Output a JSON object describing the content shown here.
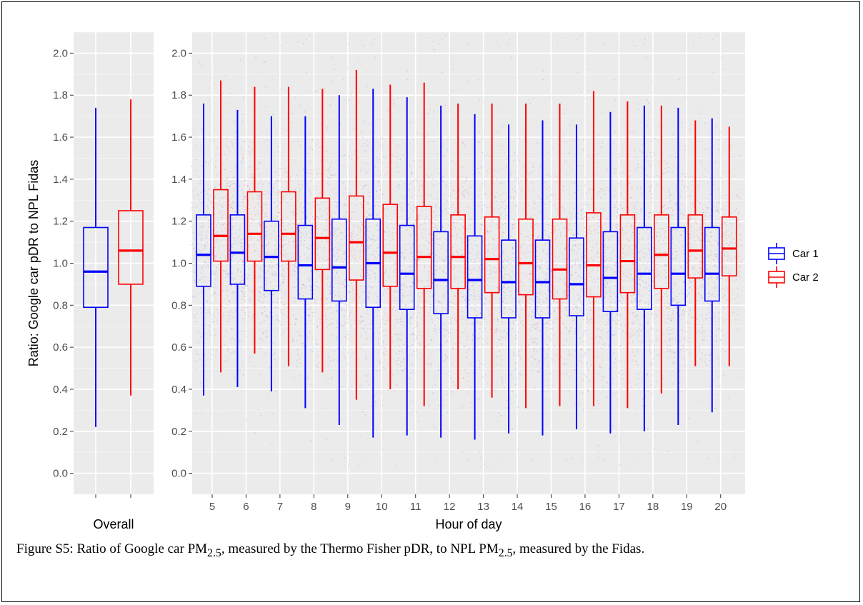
{
  "caption": {
    "label": "Figure S5:",
    "text_1": "Ratio of Google car PM",
    "sub_1": "2.5",
    "text_2": ", measured by the Thermo Fisher pDR, to NPL PM",
    "sub_2": "2.5",
    "text_3": ", measured by the Fidas."
  },
  "chart_data": {
    "type": "boxplot",
    "ylabel": "Ratio: Google car pDR to NPL Fidas",
    "ylim": [
      -0.1,
      2.1
    ],
    "yticks": [
      "0.0",
      "0.2",
      "0.4",
      "0.6",
      "0.8",
      "1.0",
      "1.2",
      "1.4",
      "1.6",
      "1.8",
      "2.0"
    ],
    "grid": true,
    "background": "#ebebeb",
    "legend": {
      "position": "right",
      "entries": [
        {
          "name": "Car 1",
          "color": "#0000ff"
        },
        {
          "name": "Car 2",
          "color": "#ff0000"
        }
      ]
    },
    "panels": [
      {
        "xlabel": "Overall",
        "categories": [
          ""
        ],
        "series": [
          {
            "name": "Car 1",
            "color": "#0000ff",
            "boxes": [
              {
                "min": 0.22,
                "q1": 0.79,
                "median": 0.96,
                "q3": 1.17,
                "max": 1.74
              }
            ]
          },
          {
            "name": "Car 2",
            "color": "#ff0000",
            "boxes": [
              {
                "min": 0.37,
                "q1": 0.9,
                "median": 1.06,
                "q3": 1.25,
                "max": 1.78
              }
            ]
          }
        ]
      },
      {
        "xlabel": "Hour of day",
        "categories": [
          "5",
          "6",
          "7",
          "8",
          "9",
          "10",
          "11",
          "12",
          "13",
          "14",
          "15",
          "16",
          "17",
          "18",
          "19",
          "20"
        ],
        "series": [
          {
            "name": "Car 1",
            "color": "#0000ff",
            "boxes": [
              {
                "min": 0.37,
                "q1": 0.89,
                "median": 1.04,
                "q3": 1.23,
                "max": 1.76
              },
              {
                "min": 0.41,
                "q1": 0.9,
                "median": 1.05,
                "q3": 1.23,
                "max": 1.73
              },
              {
                "min": 0.39,
                "q1": 0.87,
                "median": 1.03,
                "q3": 1.2,
                "max": 1.7
              },
              {
                "min": 0.31,
                "q1": 0.83,
                "median": 0.99,
                "q3": 1.18,
                "max": 1.7
              },
              {
                "min": 0.23,
                "q1": 0.82,
                "median": 0.98,
                "q3": 1.21,
                "max": 1.8
              },
              {
                "min": 0.17,
                "q1": 0.79,
                "median": 1.0,
                "q3": 1.21,
                "max": 1.83
              },
              {
                "min": 0.18,
                "q1": 0.78,
                "median": 0.95,
                "q3": 1.18,
                "max": 1.79
              },
              {
                "min": 0.17,
                "q1": 0.76,
                "median": 0.92,
                "q3": 1.15,
                "max": 1.75
              },
              {
                "min": 0.16,
                "q1": 0.74,
                "median": 0.92,
                "q3": 1.13,
                "max": 1.71
              },
              {
                "min": 0.19,
                "q1": 0.74,
                "median": 0.91,
                "q3": 1.11,
                "max": 1.66
              },
              {
                "min": 0.18,
                "q1": 0.74,
                "median": 0.91,
                "q3": 1.11,
                "max": 1.68
              },
              {
                "min": 0.21,
                "q1": 0.75,
                "median": 0.9,
                "q3": 1.12,
                "max": 1.66
              },
              {
                "min": 0.19,
                "q1": 0.77,
                "median": 0.93,
                "q3": 1.15,
                "max": 1.72
              },
              {
                "min": 0.2,
                "q1": 0.78,
                "median": 0.95,
                "q3": 1.17,
                "max": 1.75
              },
              {
                "min": 0.23,
                "q1": 0.8,
                "median": 0.95,
                "q3": 1.17,
                "max": 1.74
              },
              {
                "min": 0.29,
                "q1": 0.82,
                "median": 0.95,
                "q3": 1.17,
                "max": 1.69
              }
            ]
          },
          {
            "name": "Car 2",
            "color": "#ff0000",
            "boxes": [
              {
                "min": 0.48,
                "q1": 1.01,
                "median": 1.13,
                "q3": 1.35,
                "max": 1.87
              },
              {
                "min": 0.57,
                "q1": 1.01,
                "median": 1.14,
                "q3": 1.34,
                "max": 1.84
              },
              {
                "min": 0.51,
                "q1": 1.01,
                "median": 1.14,
                "q3": 1.34,
                "max": 1.84
              },
              {
                "min": 0.48,
                "q1": 0.97,
                "median": 1.12,
                "q3": 1.31,
                "max": 1.83
              },
              {
                "min": 0.35,
                "q1": 0.92,
                "median": 1.1,
                "q3": 1.32,
                "max": 1.92
              },
              {
                "min": 0.4,
                "q1": 0.89,
                "median": 1.05,
                "q3": 1.28,
                "max": 1.85
              },
              {
                "min": 0.32,
                "q1": 0.88,
                "median": 1.03,
                "q3": 1.27,
                "max": 1.86
              },
              {
                "min": 0.4,
                "q1": 0.88,
                "median": 1.03,
                "q3": 1.23,
                "max": 1.76
              },
              {
                "min": 0.36,
                "q1": 0.86,
                "median": 1.02,
                "q3": 1.22,
                "max": 1.76
              },
              {
                "min": 0.31,
                "q1": 0.85,
                "median": 1.0,
                "q3": 1.21,
                "max": 1.76
              },
              {
                "min": 0.32,
                "q1": 0.83,
                "median": 0.97,
                "q3": 1.21,
                "max": 1.76
              },
              {
                "min": 0.32,
                "q1": 0.84,
                "median": 0.99,
                "q3": 1.24,
                "max": 1.82
              },
              {
                "min": 0.31,
                "q1": 0.86,
                "median": 1.01,
                "q3": 1.23,
                "max": 1.77
              },
              {
                "min": 0.38,
                "q1": 0.88,
                "median": 1.04,
                "q3": 1.23,
                "max": 1.75
              },
              {
                "min": 0.51,
                "q1": 0.93,
                "median": 1.06,
                "q3": 1.23,
                "max": 1.68
              },
              {
                "min": 0.51,
                "q1": 0.94,
                "median": 1.07,
                "q3": 1.22,
                "max": 1.65
              }
            ]
          }
        ]
      }
    ]
  }
}
